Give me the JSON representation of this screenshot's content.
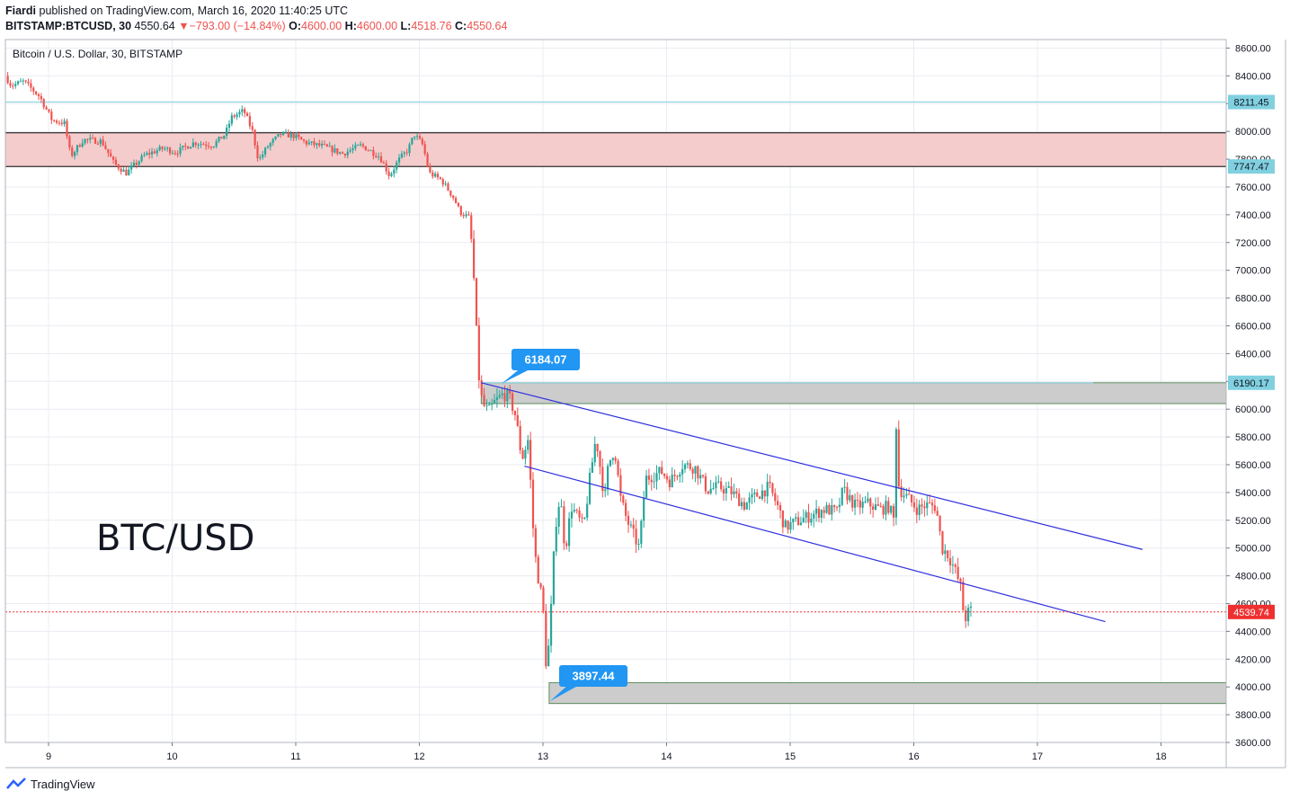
{
  "header": {
    "author": "Fiardi",
    "published": "published on TradingView.com, March 16, 2020 11:40:25 UTC",
    "symbol": "BITSTAMP:BTCUSD, 30",
    "last": "4550.64",
    "arrow": "▼",
    "change": "−793.00 (−14.84%)",
    "o_label": "O:",
    "o": "4600.00",
    "h_label": "H:",
    "h": "4600.00",
    "l_label": "L:",
    "l": "4518.76",
    "c_label": "C:",
    "c": "4550.64"
  },
  "footer": {
    "brand": "TradingView"
  },
  "colors": {
    "up": "#26a69a",
    "down": "#ef5350",
    "grid": "#e9ecf2",
    "channel": "#3030e0",
    "resistance_zone": "#f4cccc",
    "gray_zone": "#cccccc",
    "callout": "#2196f3",
    "price_tag_cyan": "#80d0e0",
    "current_price": "#ef3030"
  },
  "chart_data": {
    "type": "candlestick",
    "title": "Bitcoin / U.S. Dollar, 30, BITSTAMP",
    "watermark": "BTC/USD",
    "x_ticks": [
      "9",
      "10",
      "11",
      "12",
      "13",
      "14",
      "15",
      "16",
      "17",
      "18"
    ],
    "y_ticks": [
      "8600.00",
      "8400.00",
      "8200.00",
      "8000.00",
      "7800.00",
      "7600.00",
      "7400.00",
      "7200.00",
      "7000.00",
      "6800.00",
      "6600.00",
      "6400.00",
      "6200.00",
      "6000.00",
      "5800.00",
      "5600.00",
      "5400.00",
      "5200.00",
      "5000.00",
      "4800.00",
      "4600.00",
      "4400.00",
      "4200.00",
      "4000.00",
      "3800.00",
      "3600.00"
    ],
    "ylim": [
      3600,
      8680
    ],
    "xlim": [
      8.65,
      18.5
    ],
    "price_path": [
      [
        8.67,
        8400
      ],
      [
        8.72,
        8330
      ],
      [
        8.82,
        8360
      ],
      [
        8.95,
        8250
      ],
      [
        9.05,
        8080
      ],
      [
        9.15,
        8060
      ],
      [
        9.2,
        7820
      ],
      [
        9.3,
        7940
      ],
      [
        9.45,
        7930
      ],
      [
        9.55,
        7770
      ],
      [
        9.65,
        7700
      ],
      [
        9.8,
        7830
      ],
      [
        9.95,
        7880
      ],
      [
        10.05,
        7850
      ],
      [
        10.2,
        7920
      ],
      [
        10.35,
        7900
      ],
      [
        10.45,
        7980
      ],
      [
        10.5,
        8100
      ],
      [
        10.6,
        8150
      ],
      [
        10.67,
        8000
      ],
      [
        10.72,
        7790
      ],
      [
        10.8,
        7900
      ],
      [
        10.9,
        7980
      ],
      [
        11.0,
        7970
      ],
      [
        11.1,
        7920
      ],
      [
        11.25,
        7890
      ],
      [
        11.4,
        7840
      ],
      [
        11.55,
        7900
      ],
      [
        11.7,
        7820
      ],
      [
        11.78,
        7680
      ],
      [
        11.85,
        7790
      ],
      [
        11.93,
        7870
      ],
      [
        11.98,
        7980
      ],
      [
        12.05,
        7900
      ],
      [
        12.1,
        7700
      ],
      [
        12.2,
        7650
      ],
      [
        12.3,
        7520
      ],
      [
        12.35,
        7420
      ],
      [
        12.42,
        7380
      ],
      [
        12.45,
        7150
      ],
      [
        12.48,
        6600
      ],
      [
        12.5,
        6250
      ],
      [
        12.53,
        6040
      ],
      [
        12.58,
        5980
      ],
      [
        12.63,
        6050
      ],
      [
        12.7,
        6110
      ],
      [
        12.75,
        6080
      ],
      [
        12.8,
        5950
      ],
      [
        12.85,
        5640
      ],
      [
        12.9,
        5780
      ],
      [
        12.92,
        5480
      ],
      [
        12.95,
        5000
      ],
      [
        12.98,
        4800
      ],
      [
        13.02,
        4600
      ],
      [
        13.05,
        4100
      ],
      [
        13.08,
        4450
      ],
      [
        13.12,
        5150
      ],
      [
        13.16,
        5380
      ],
      [
        13.2,
        4980
      ],
      [
        13.25,
        5300
      ],
      [
        13.35,
        5150
      ],
      [
        13.4,
        5500
      ],
      [
        13.45,
        5800
      ],
      [
        13.52,
        5350
      ],
      [
        13.55,
        5600
      ],
      [
        13.6,
        5720
      ],
      [
        13.65,
        5350
      ],
      [
        13.7,
        5200
      ],
      [
        13.75,
        5100
      ],
      [
        13.8,
        5000
      ],
      [
        13.85,
        5500
      ],
      [
        13.9,
        5520
      ],
      [
        13.98,
        5550
      ],
      [
        14.05,
        5480
      ],
      [
        14.15,
        5600
      ],
      [
        14.25,
        5580
      ],
      [
        14.35,
        5420
      ],
      [
        14.45,
        5440
      ],
      [
        14.55,
        5400
      ],
      [
        14.65,
        5310
      ],
      [
        14.75,
        5380
      ],
      [
        14.85,
        5440
      ],
      [
        14.92,
        5300
      ],
      [
        14.98,
        5150
      ],
      [
        15.05,
        5180
      ],
      [
        15.15,
        5220
      ],
      [
        15.3,
        5280
      ],
      [
        15.4,
        5260
      ],
      [
        15.45,
        5420
      ],
      [
        15.55,
        5300
      ],
      [
        15.65,
        5320
      ],
      [
        15.75,
        5280
      ],
      [
        15.82,
        5300
      ],
      [
        15.86,
        5200
      ],
      [
        15.88,
        5950
      ],
      [
        15.9,
        5430
      ],
      [
        15.95,
        5380
      ],
      [
        16.05,
        5280
      ],
      [
        16.12,
        5310
      ],
      [
        16.2,
        5300
      ],
      [
        16.25,
        5000
      ],
      [
        16.3,
        4950
      ],
      [
        16.35,
        4850
      ],
      [
        16.4,
        4720
      ],
      [
        16.43,
        4480
      ],
      [
        16.47,
        4550
      ]
    ],
    "annotations": {
      "resistance_zone": [
        7747.47,
        7990
      ],
      "level_8211": 8211.45,
      "level_7747": 7747.47,
      "level_6190": 6190.17,
      "top_zone": [
        6040,
        6190.17
      ],
      "bottom_zone": [
        3880,
        4030
      ],
      "current_price": 4539.74,
      "callout_high": "6184.07",
      "callout_low": "3897.44",
      "price_tags": [
        "8211.45",
        "7747.47",
        "6190.17",
        "4539.74"
      ],
      "channel_upper": [
        [
          12.5,
          6190
        ],
        [
          17.85,
          4990
        ]
      ],
      "channel_lower": [
        [
          12.85,
          5590
        ],
        [
          17.55,
          4470
        ]
      ]
    }
  }
}
